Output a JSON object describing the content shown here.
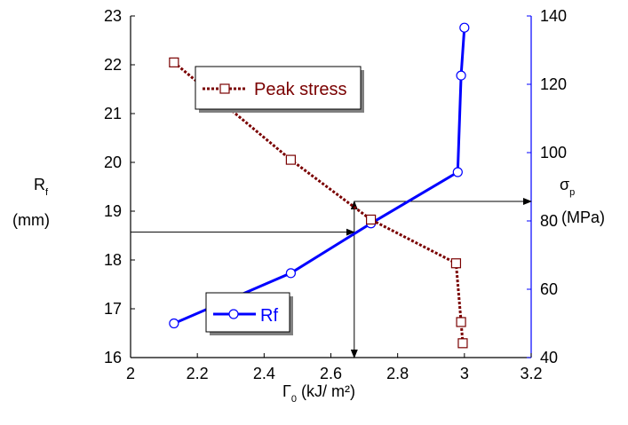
{
  "chart_data": {
    "type": "line",
    "x_label": {
      "symbol": "Γ",
      "sub": "0",
      "unit": " (kJ/ m²)"
    },
    "y_left_label": {
      "symbol": "R",
      "sub": "f",
      "unit": "(mm)"
    },
    "y_right_label": {
      "symbol": "σ",
      "sub": "p",
      "unit": "(MPa)"
    },
    "xlim": [
      2,
      3.2
    ],
    "ylim_left": [
      16,
      23
    ],
    "ylim_right": [
      40,
      140
    ],
    "x_ticks": [
      "2",
      "2.2",
      "2.4",
      "2.6",
      "2.8",
      "3",
      "3.2"
    ],
    "y_left_ticks": [
      "16",
      "17",
      "18",
      "19",
      "20",
      "21",
      "22",
      "23"
    ],
    "y_right_ticks": [
      "40",
      "60",
      "80",
      "100",
      "120",
      "140"
    ],
    "series": [
      {
        "name": "Rf",
        "axis": "left",
        "color": "#0000ff",
        "marker": "circle",
        "x": [
          2.13,
          2.48,
          2.72,
          2.98,
          2.99,
          3.0
        ],
        "y": [
          16.7,
          17.73,
          18.75,
          19.8,
          21.78,
          22.76
        ]
      },
      {
        "name": "Peak stress",
        "axis": "right",
        "color": "#7a0000",
        "marker": "square",
        "x": [
          2.13,
          2.48,
          2.72,
          2.975,
          2.99,
          2.995
        ],
        "y": [
          126.4,
          97.9,
          80.4,
          67.6,
          50.4,
          44.2
        ]
      }
    ],
    "annotation_arrows": [
      {
        "from": {
          "x": 2.0,
          "y_left": 18.57
        },
        "to": {
          "x": 2.67,
          "y_left": 18.57
        }
      },
      {
        "from": {
          "x": 2.67,
          "y_left": 18.57
        },
        "to": {
          "x": 2.67,
          "y_left": 16.0
        }
      },
      {
        "from": {
          "x": 2.67,
          "y_left": 18.57
        },
        "to": {
          "x": 2.67,
          "y_left": 19.2
        }
      },
      {
        "from": {
          "x": 2.67,
          "y_left": 19.2
        },
        "to": {
          "x": 3.2,
          "y_left": 19.2
        }
      }
    ],
    "legend": [
      "Peak stress",
      "Rf"
    ]
  }
}
